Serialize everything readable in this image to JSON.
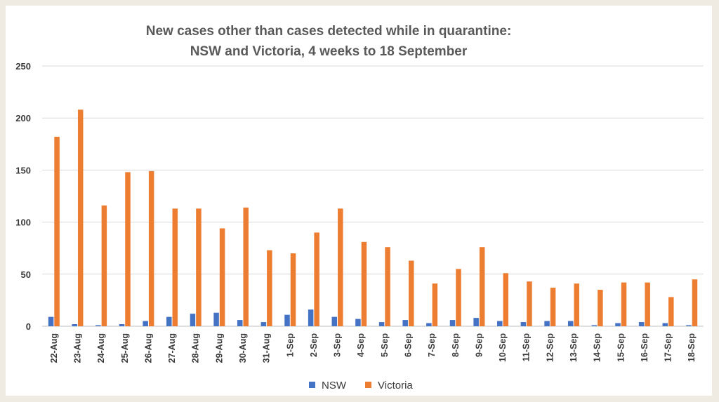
{
  "chart_data": {
    "type": "bar",
    "title_lines": [
      "New cases other than cases detected while in quarantine:",
      "NSW and Victoria, 4 weeks to 18 September"
    ],
    "xlabel": "",
    "ylabel": "",
    "ylim": [
      0,
      250
    ],
    "yticks": [
      "0",
      "50",
      "100",
      "150",
      "200",
      "250"
    ],
    "grid": true,
    "legend_position": "bottom-center",
    "categories": [
      "22-Aug",
      "23-Aug",
      "24-Aug",
      "25-Aug",
      "26-Aug",
      "27-Aug",
      "28-Aug",
      "29-Aug",
      "30-Aug",
      "31-Aug",
      "1-Sep",
      "2-Sep",
      "3-Sep",
      "4-Sep",
      "5-Sep",
      "6-Sep",
      "7-Sep",
      "8-Sep",
      "9-Sep",
      "10-Sep",
      "11-Sep",
      "12-Sep",
      "13-Sep",
      "14-Sep",
      "15-Sep",
      "16-Sep",
      "17-Sep",
      "18-Sep"
    ],
    "series": [
      {
        "name": "NSW",
        "color": "#4472c4",
        "values": [
          9,
          2,
          1,
          2,
          5,
          9,
          12,
          13,
          6,
          4,
          11,
          16,
          9,
          7,
          4,
          6,
          3,
          6,
          8,
          5,
          4,
          5,
          5,
          1,
          3,
          4,
          3,
          1
        ]
      },
      {
        "name": "Victoria",
        "color": "#ed7d31",
        "values": [
          182,
          208,
          116,
          148,
          149,
          113,
          113,
          94,
          114,
          73,
          70,
          90,
          113,
          81,
          76,
          63,
          41,
          55,
          76,
          51,
          43,
          37,
          41,
          35,
          42,
          42,
          28,
          45
        ]
      }
    ]
  }
}
